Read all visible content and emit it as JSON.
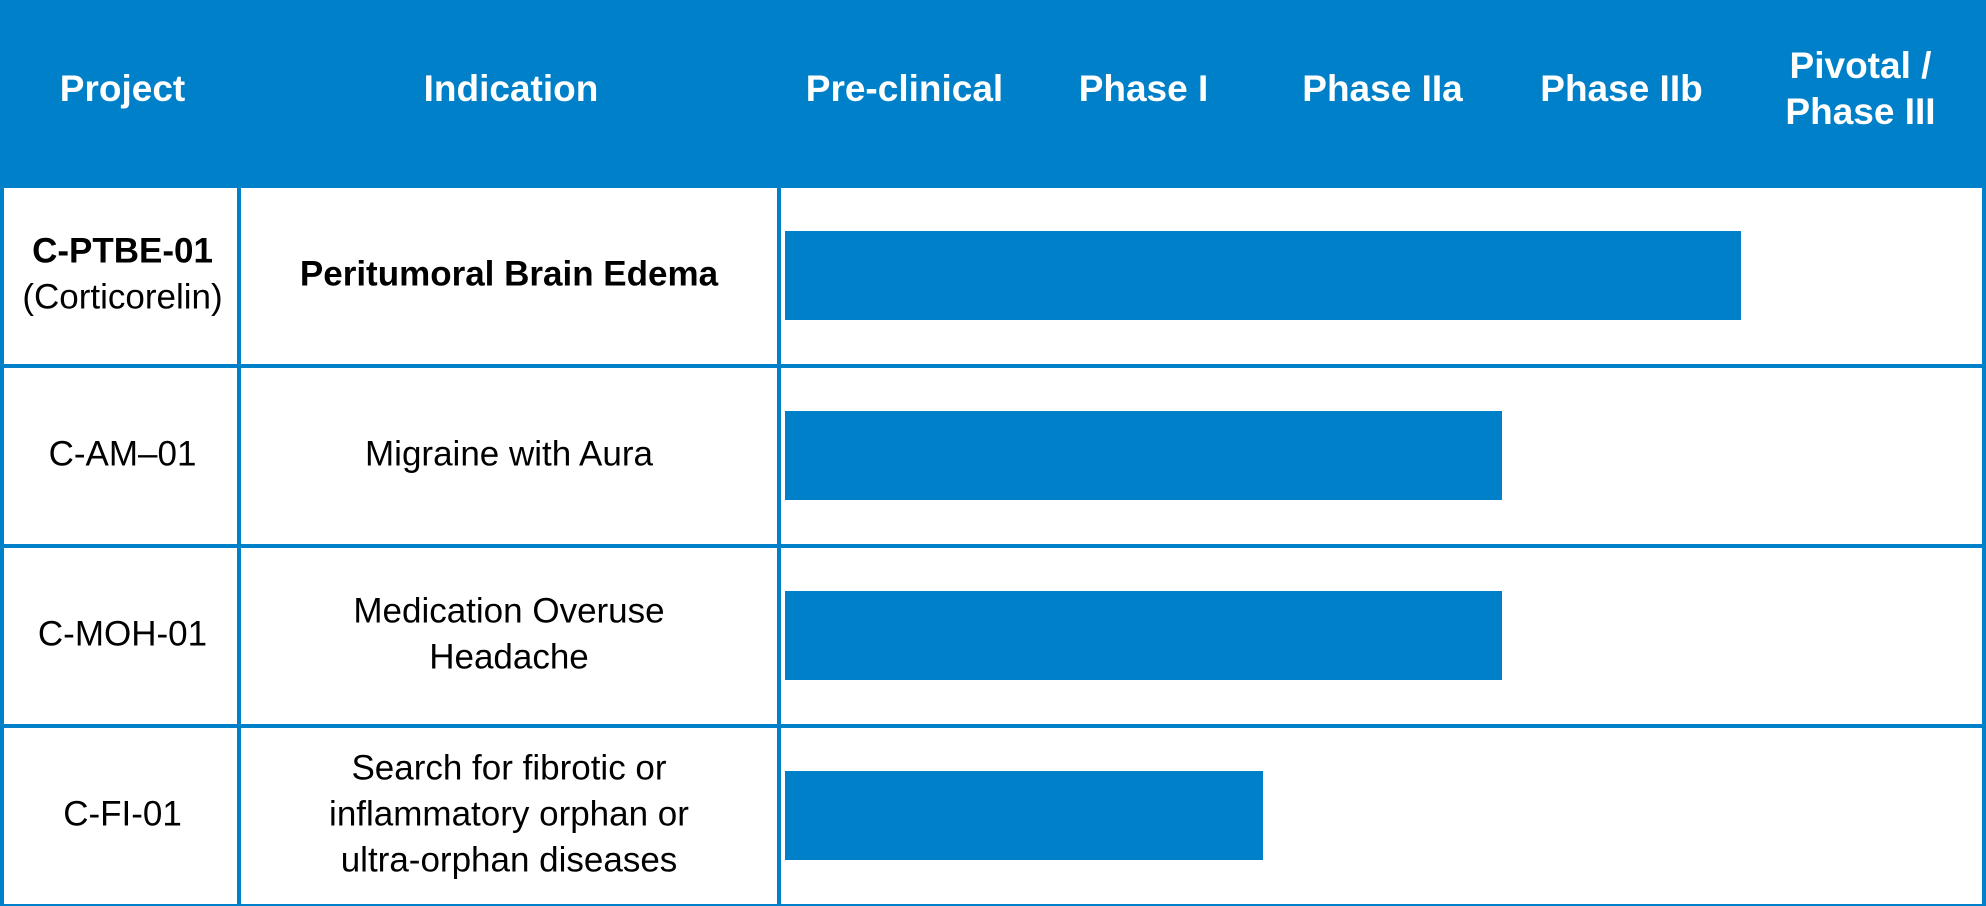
{
  "header": {
    "columns": [
      "Project",
      "Indication"
    ],
    "phases": [
      [
        "Pre-clinical"
      ],
      [
        "Phase I"
      ],
      [
        "Phase IIa"
      ],
      [
        "Phase IIb"
      ],
      [
        "Pivotal /",
        "Phase III"
      ]
    ]
  },
  "rows": [
    {
      "project": [
        "C-PTBE-01",
        "(Corticorelin)"
      ],
      "indication": [
        "Peritumoral Brain Edema"
      ],
      "bold": true,
      "progress": 4
    },
    {
      "project": [
        "C-AM–01"
      ],
      "indication": [
        "Migraine with Aura"
      ],
      "bold": false,
      "progress": 3
    },
    {
      "project": [
        "C-MOH-01"
      ],
      "indication": [
        "Medication Overuse",
        "Headache"
      ],
      "bold": false,
      "progress": 3
    },
    {
      "project": [
        "C-FI-01"
      ],
      "indication": [
        "Search for fibrotic or",
        "inflammatory orphan or",
        "ultra-orphan diseases"
      ],
      "bold": false,
      "progress": 2
    }
  ],
  "color": "#0080c8"
}
